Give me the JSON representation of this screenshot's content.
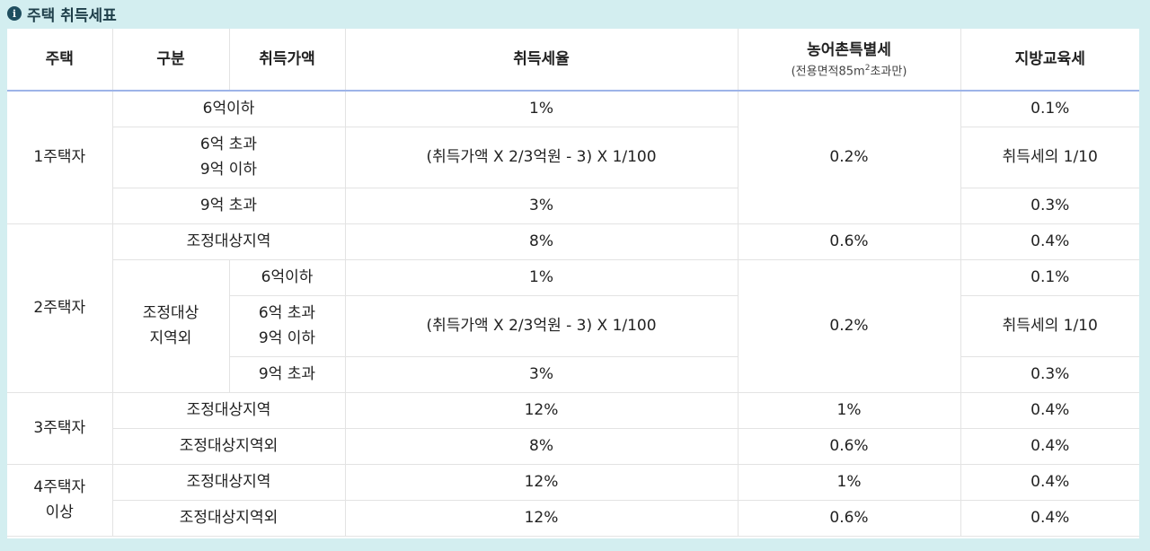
{
  "title": "주택 취득세표",
  "header": {
    "col1": "주택",
    "col2": "구분",
    "col3": "취득가액",
    "col4": "취득세율",
    "col5": "농어촌특별세",
    "col5_sub_prefix": "(전용면적85m",
    "col5_sub_sup": "2",
    "col5_sub_suffix": "초과만)",
    "col6": "지방교육세"
  },
  "rows": {
    "h1": {
      "label": "1주택자",
      "r1": {
        "price": "6억이하",
        "rate": "1%",
        "rural": "0.2%",
        "edu": "0.1%"
      },
      "r2": {
        "price_l1": "6억 초과",
        "price_l2": "9억 이하",
        "rate": "(취득가액 X 2/3억원 - 3) X 1/100",
        "edu": "취득세의 1/10"
      },
      "r3": {
        "price": "9억 초과",
        "rate": "3%",
        "edu": "0.3%"
      }
    },
    "h2": {
      "label": "2주택자",
      "r1": {
        "category": "조정대상지역",
        "rate": "8%",
        "rural": "0.6%",
        "edu": "0.4%"
      },
      "outside_l1": "조정대상",
      "outside_l2": "지역외",
      "r2": {
        "price": "6억이하",
        "rate": "1%",
        "rural": "0.2%",
        "edu": "0.1%"
      },
      "r3": {
        "price_l1": "6억 초과",
        "price_l2": "9억 이하",
        "rate": "(취득가액 X 2/3억원 - 3) X 1/100",
        "edu": "취득세의 1/10"
      },
      "r4": {
        "price": "9억 초과",
        "rate": "3%",
        "edu": "0.3%"
      }
    },
    "h3": {
      "label": "3주택자",
      "r1": {
        "category": "조정대상지역",
        "rate": "12%",
        "rural": "1%",
        "edu": "0.4%"
      },
      "r2": {
        "category": "조정대상지역외",
        "rate": "8%",
        "rural": "0.6%",
        "edu": "0.4%"
      }
    },
    "h4": {
      "label_l1": "4주택자",
      "label_l2": "이상",
      "r1": {
        "category": "조정대상지역",
        "rate": "12%",
        "rural": "1%",
        "edu": "0.4%"
      },
      "r2": {
        "category": "조정대상지역외",
        "rate": "12%",
        "rural": "0.6%",
        "edu": "0.4%"
      }
    }
  }
}
